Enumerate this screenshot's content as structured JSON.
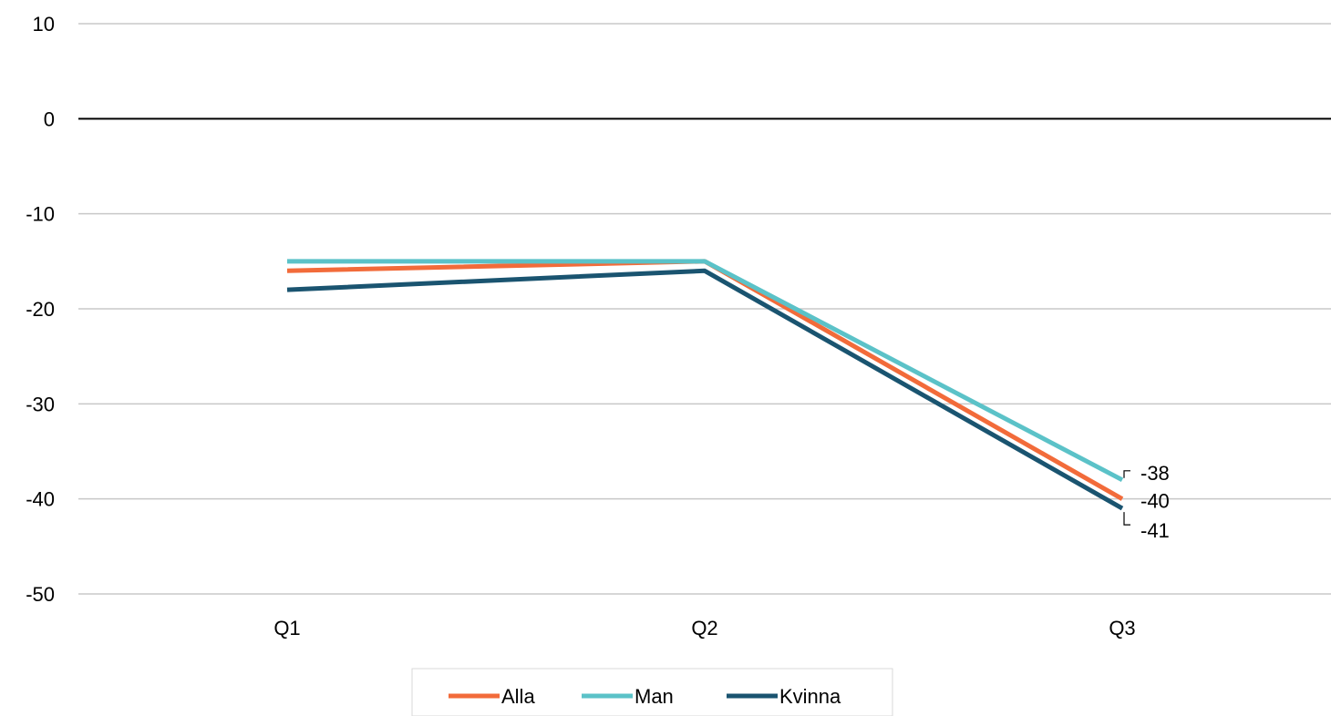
{
  "chart_data": {
    "type": "line",
    "categories": [
      "Q1",
      "Q2",
      "Q3"
    ],
    "series": [
      {
        "name": "Alla",
        "values": [
          -16,
          -15,
          -40
        ],
        "color": "#F26B3A"
      },
      {
        "name": "Man",
        "values": [
          -15,
          -15,
          -38
        ],
        "color": "#5BC2C8"
      },
      {
        "name": "Kvinna",
        "values": [
          -18,
          -16,
          -41
        ],
        "color": "#1A5470"
      }
    ],
    "ylim": [
      -50,
      10
    ],
    "yticks": [
      10,
      0,
      -10,
      -20,
      -30,
      -40,
      -50
    ],
    "ytick_labels": [
      "10",
      "0",
      "-10",
      "-20",
      "-30",
      "-40",
      "-50"
    ],
    "data_labels": [
      {
        "series": "Man",
        "category": "Q3",
        "text": "-38"
      },
      {
        "series": "Alla",
        "category": "Q3",
        "text": "-40"
      },
      {
        "series": "Kvinna",
        "category": "Q3",
        "text": "-41"
      }
    ],
    "grid": true,
    "legend_position": "bottom"
  }
}
